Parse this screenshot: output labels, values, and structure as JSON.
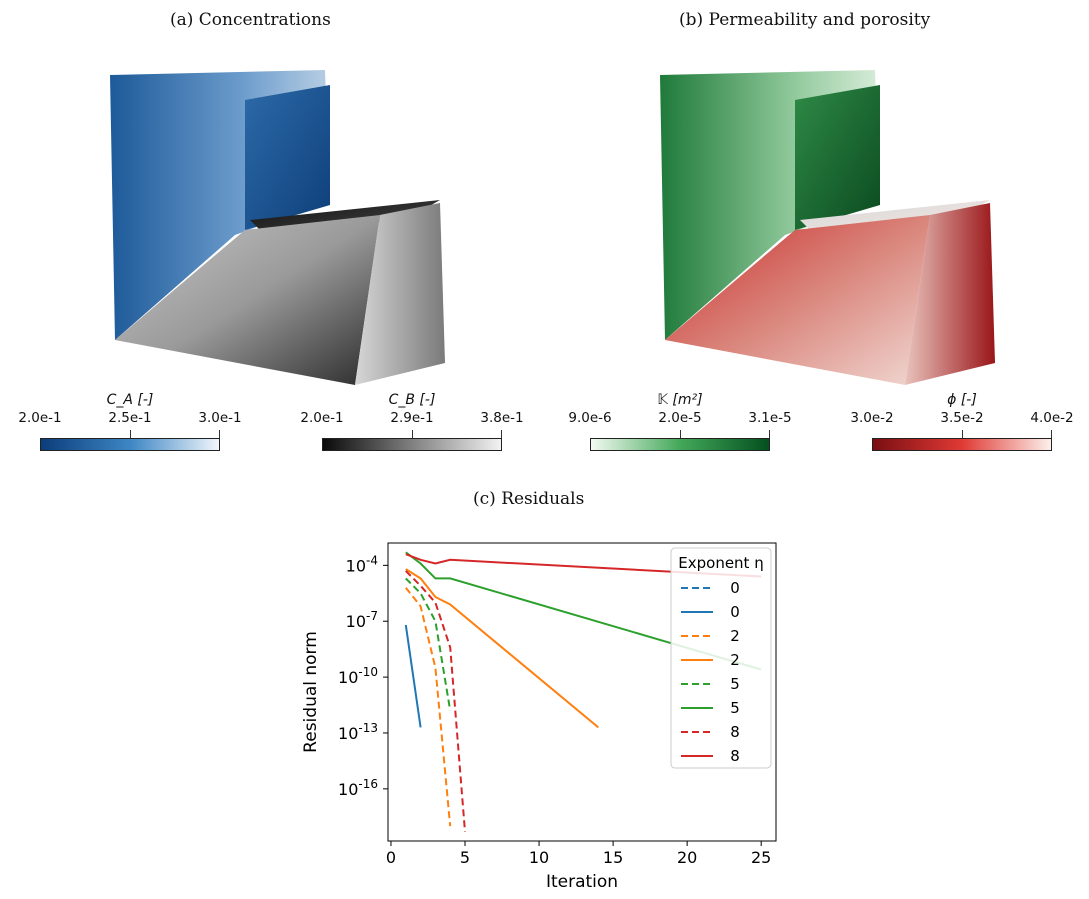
{
  "captions": {
    "a": "(a) Concentrations",
    "b": "(b) Permeability and porosity",
    "c": "(c) Residuals"
  },
  "colorbars": [
    {
      "label": "C_A [-]",
      "ticks": [
        "2.0e-1",
        "2.5e-1",
        "3.0e-1"
      ],
      "colors": [
        "#0b3d7a",
        "#3d86c4",
        "#f2f6fb"
      ]
    },
    {
      "label": "C_B [-]",
      "ticks": [
        "2.0e-1",
        "2.9e-1",
        "3.8e-1"
      ],
      "colors": [
        "#0a0a0a",
        "#808080",
        "#f2f2f2"
      ]
    },
    {
      "label": "𝕂 [m²]",
      "ticks": [
        "9.0e-6",
        "2.0e-5",
        "3.1e-5"
      ],
      "colors": [
        "#f3faf1",
        "#43a85a",
        "#04501f"
      ]
    },
    {
      "label": "ϕ [-]",
      "ticks": [
        "3.0e-2",
        "3.5e-2",
        "4.0e-2"
      ],
      "colors": [
        "#7a0e12",
        "#e03a35",
        "#fcf0eb"
      ]
    }
  ],
  "chart_data": {
    "type": "line",
    "title": "",
    "xlabel": "Iteration",
    "ylabel": "Residual norm",
    "xlim": [
      -0.2,
      26
    ],
    "ylim_log10": [
      -18.8,
      -2.8
    ],
    "yscale": "log",
    "xticks": [
      "0",
      "5",
      "10",
      "15",
      "20",
      "25"
    ],
    "yticks": [
      {
        "base": "10",
        "exp": "-4",
        "log": -4
      },
      {
        "base": "10",
        "exp": "-7",
        "log": -7
      },
      {
        "base": "10",
        "exp": "-10",
        "log": -10
      },
      {
        "base": "10",
        "exp": "-13",
        "log": -13
      },
      {
        "base": "10",
        "exp": "-16",
        "log": -16
      }
    ],
    "legend": {
      "title": "Exponent η",
      "placement": "top-right"
    },
    "series": [
      {
        "name": "0",
        "color": "#1f77b4",
        "dash": true,
        "x": [],
        "log10_y": []
      },
      {
        "name": "0",
        "color": "#1f77b4",
        "dash": false,
        "x": [
          1,
          2
        ],
        "log10_y": [
          -7.2,
          -12.7
        ]
      },
      {
        "name": "2",
        "color": "#ff7f0e",
        "dash": true,
        "x": [
          1,
          2,
          3,
          4
        ],
        "log10_y": [
          -5.2,
          -6.2,
          -9.5,
          -18.0
        ]
      },
      {
        "name": "2",
        "color": "#ff7f0e",
        "dash": false,
        "x": [
          1,
          2,
          3,
          4,
          14
        ],
        "log10_y": [
          -4.2,
          -4.7,
          -5.7,
          -6.1,
          -12.7
        ]
      },
      {
        "name": "5",
        "color": "#2ca02c",
        "dash": true,
        "x": [
          1,
          2,
          3,
          4
        ],
        "log10_y": [
          -4.7,
          -5.5,
          -7.0,
          -11.8
        ]
      },
      {
        "name": "5",
        "color": "#2ca02c",
        "dash": false,
        "x": [
          1,
          2,
          3,
          4,
          25
        ],
        "log10_y": [
          -3.3,
          -3.9,
          -4.7,
          -4.7,
          -9.6
        ]
      },
      {
        "name": "8",
        "color": "#d62728",
        "dash": true,
        "x": [
          1,
          2,
          3,
          4,
          5
        ],
        "log10_y": [
          -4.3,
          -5.1,
          -6.0,
          -8.4,
          -18.3
        ]
      },
      {
        "name": "8",
        "color": "#d62728",
        "dash": false,
        "x": [
          1,
          2,
          3,
          4,
          25
        ],
        "log10_y": [
          -3.4,
          -3.7,
          -3.9,
          -3.7,
          -4.6
        ]
      }
    ]
  }
}
